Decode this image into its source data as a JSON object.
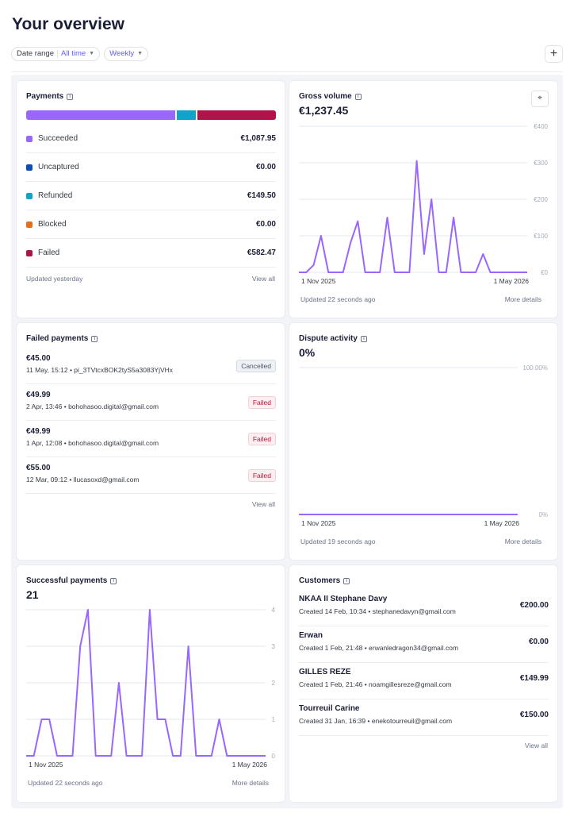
{
  "header": {
    "title": "Your overview"
  },
  "filters": {
    "date_range_label": "Date range",
    "date_range_value": "All time",
    "interval_value": "Weekly"
  },
  "add_button": "+",
  "payments": {
    "title": "Payments",
    "segments": [
      {
        "name": "Succeeded",
        "fraction": 0.597,
        "color": "#9966ff"
      },
      {
        "name": "Refunded",
        "fraction": 0.082,
        "color": "#0ea5c6"
      },
      {
        "name": "Failed",
        "fraction": 0.321,
        "color": "#b0124a"
      }
    ],
    "rows": [
      {
        "label": "Succeeded",
        "value": "€1,087.95",
        "color": "#9966ff"
      },
      {
        "label": "Uncaptured",
        "value": "€0.00",
        "color": "#0a4fb5"
      },
      {
        "label": "Refunded",
        "value": "€149.50",
        "color": "#0ea5c6"
      },
      {
        "label": "Blocked",
        "value": "€0.00",
        "color": "#e5701b"
      },
      {
        "label": "Failed",
        "value": "€582.47",
        "color": "#b0124a"
      }
    ],
    "updated": "Updated yesterday",
    "view_all": "View all"
  },
  "gross_volume": {
    "title": "Gross volume",
    "value": "€1,237.45",
    "updated": "Updated 22 seconds ago",
    "more": "More details",
    "icon": "binoculars-icon"
  },
  "failed_payments": {
    "title": "Failed payments",
    "rows": [
      {
        "amount": "€45.00",
        "meta": "11 May, 15:12 • pi_3TVtcxBOK2tyS5a3083YjVHx",
        "status": "Cancelled"
      },
      {
        "amount": "€49.99",
        "meta": "2 Apr, 13:46 • bohohasoo.digital@gmail.com",
        "status": "Failed"
      },
      {
        "amount": "€49.99",
        "meta": "1 Apr, 12:08 • bohohasoo.digital@gmail.com",
        "status": "Failed"
      },
      {
        "amount": "€55.00",
        "meta": "12 Mar, 09:12 • llucasoxd@gmail.com",
        "status": "Failed"
      }
    ],
    "view_all": "View all"
  },
  "dispute_activity": {
    "title": "Dispute activity",
    "value": "0%",
    "updated": "Updated 19 seconds ago",
    "more": "More details"
  },
  "successful_payments": {
    "title": "Successful payments",
    "value": "21",
    "updated": "Updated 22 seconds ago",
    "more": "More details"
  },
  "customers": {
    "title": "Customers",
    "rows": [
      {
        "name": "NKAA II Stephane Davy",
        "meta": "Created 14 Feb, 10:34 • stephanedavyn@gmail.com",
        "amount": "€200.00"
      },
      {
        "name": "Erwan",
        "meta": "Created 1 Feb, 21:48 • erwanledragon34@gmail.com",
        "amount": "€0.00"
      },
      {
        "name": "GILLES REZE",
        "meta": "Created 1 Feb, 21:46 • noamgillesreze@gmail.com",
        "amount": "€149.99"
      },
      {
        "name": "Tourreuil Carine",
        "meta": "Created 31 Jan, 16:39 • enekotourreuil@gmail.com",
        "amount": "€150.00"
      }
    ],
    "view_all": "View all"
  },
  "chart_data": [
    {
      "id": "gross_volume",
      "type": "line",
      "color": "#9966ff",
      "x_start_label": "1 Nov 2025",
      "x_end_label": "1 May 2026",
      "y_ticks": [
        "€0",
        "€100",
        "€200",
        "€300",
        "€400"
      ],
      "ylim": [
        0,
        400
      ],
      "grid": true,
      "values": [
        0,
        0,
        20,
        100,
        0,
        0,
        0,
        80,
        140,
        0,
        0,
        0,
        150,
        0,
        0,
        0,
        305,
        50,
        200,
        0,
        0,
        150,
        0,
        0,
        0,
        50,
        0,
        0,
        0,
        0,
        0,
        0
      ]
    },
    {
      "id": "dispute_activity",
      "type": "line",
      "color": "#9966ff",
      "x_start_label": "1 Nov 2025",
      "x_end_label": "1 May 2026",
      "y_ticks": [
        "0%",
        "100.00%"
      ],
      "ylim": [
        0,
        100
      ],
      "grid": true,
      "values": [
        0,
        0
      ]
    },
    {
      "id": "successful_payments",
      "type": "line",
      "color": "#9966ff",
      "x_start_label": "1 Nov 2025",
      "x_end_label": "1 May 2026",
      "y_ticks": [
        "0",
        "1",
        "2",
        "3",
        "4"
      ],
      "ylim": [
        0,
        4
      ],
      "grid": true,
      "values": [
        0,
        0,
        1,
        1,
        0,
        0,
        0,
        3,
        4,
        0,
        0,
        0,
        2,
        0,
        0,
        0,
        4,
        1,
        1,
        0,
        0,
        3,
        0,
        0,
        0,
        1,
        0,
        0,
        0,
        0,
        0,
        0
      ]
    }
  ]
}
